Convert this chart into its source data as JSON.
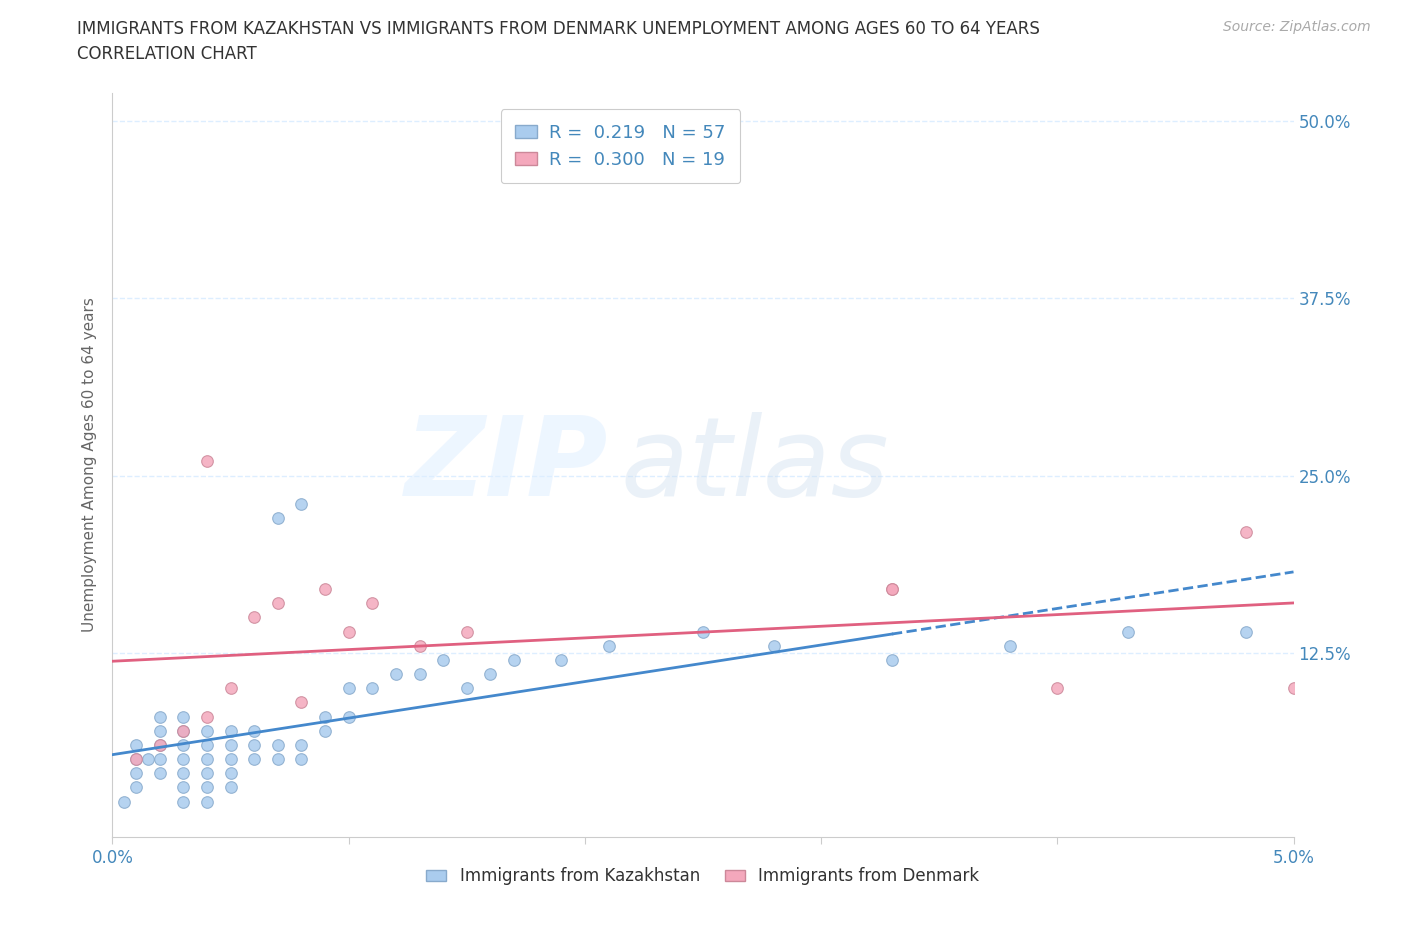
{
  "title_line1": "IMMIGRANTS FROM KAZAKHSTAN VS IMMIGRANTS FROM DENMARK UNEMPLOYMENT AMONG AGES 60 TO 64 YEARS",
  "title_line2": "CORRELATION CHART",
  "source_text": "Source: ZipAtlas.com",
  "ylabel": "Unemployment Among Ages 60 to 64 years",
  "xlim": [
    0.0,
    0.05
  ],
  "ylim": [
    -0.005,
    0.52
  ],
  "yticks": [
    0.125,
    0.25,
    0.375,
    0.5
  ],
  "ytick_labels": [
    "12.5%",
    "25.0%",
    "37.5%",
    "50.0%"
  ],
  "xticks": [
    0.0,
    0.01,
    0.02,
    0.03,
    0.04,
    0.05
  ],
  "xtick_labels": [
    "0.0%",
    "",
    "",
    "",
    "",
    "5.0%"
  ],
  "legend_items": [
    {
      "label": "R =  0.219   N = 57",
      "facecolor": "#aaccee",
      "edgecolor": "#88aacc"
    },
    {
      "label": "R =  0.300   N = 19",
      "facecolor": "#f4a8bc",
      "edgecolor": "#cc8899"
    }
  ],
  "kaz_scatter_x": [
    0.0005,
    0.001,
    0.001,
    0.001,
    0.001,
    0.0015,
    0.002,
    0.002,
    0.002,
    0.002,
    0.002,
    0.003,
    0.003,
    0.003,
    0.003,
    0.003,
    0.003,
    0.003,
    0.004,
    0.004,
    0.004,
    0.004,
    0.004,
    0.004,
    0.005,
    0.005,
    0.005,
    0.005,
    0.005,
    0.006,
    0.006,
    0.006,
    0.007,
    0.007,
    0.007,
    0.008,
    0.008,
    0.008,
    0.009,
    0.009,
    0.01,
    0.01,
    0.011,
    0.012,
    0.013,
    0.014,
    0.015,
    0.016,
    0.017,
    0.019,
    0.021,
    0.025,
    0.028,
    0.033,
    0.038,
    0.043,
    0.048
  ],
  "kaz_scatter_y": [
    0.02,
    0.03,
    0.04,
    0.05,
    0.06,
    0.05,
    0.04,
    0.05,
    0.06,
    0.07,
    0.08,
    0.02,
    0.03,
    0.04,
    0.05,
    0.06,
    0.07,
    0.08,
    0.02,
    0.03,
    0.04,
    0.05,
    0.06,
    0.07,
    0.03,
    0.04,
    0.05,
    0.06,
    0.07,
    0.05,
    0.06,
    0.07,
    0.05,
    0.06,
    0.22,
    0.05,
    0.06,
    0.23,
    0.07,
    0.08,
    0.08,
    0.1,
    0.1,
    0.11,
    0.11,
    0.12,
    0.1,
    0.11,
    0.12,
    0.12,
    0.13,
    0.14,
    0.13,
    0.12,
    0.13,
    0.14,
    0.14
  ],
  "den_scatter_x": [
    0.001,
    0.002,
    0.003,
    0.004,
    0.004,
    0.005,
    0.006,
    0.007,
    0.008,
    0.009,
    0.01,
    0.011,
    0.013,
    0.015,
    0.033,
    0.033,
    0.04,
    0.048,
    0.05
  ],
  "den_scatter_y": [
    0.05,
    0.06,
    0.07,
    0.08,
    0.26,
    0.1,
    0.15,
    0.16,
    0.09,
    0.17,
    0.14,
    0.16,
    0.13,
    0.14,
    0.17,
    0.17,
    0.1,
    0.21,
    0.1
  ],
  "kaz_color": "#aaccee",
  "den_color": "#f4a8bc",
  "kaz_edge_color": "#88aacc",
  "den_edge_color": "#cc8899",
  "kaz_line_color": "#4488cc",
  "den_line_color": "#e06080",
  "kaz_line_solid_end": 0.033,
  "title_color": "#333333",
  "axis_label_color": "#4488bb",
  "source_color": "#aaaaaa",
  "grid_color": "#ddeeff",
  "bottom_legend": [
    {
      "label": "Immigrants from Kazakhstan",
      "facecolor": "#aaccee",
      "edgecolor": "#88aacc"
    },
    {
      "label": "Immigrants from Denmark",
      "facecolor": "#f4a8bc",
      "edgecolor": "#cc8899"
    }
  ]
}
